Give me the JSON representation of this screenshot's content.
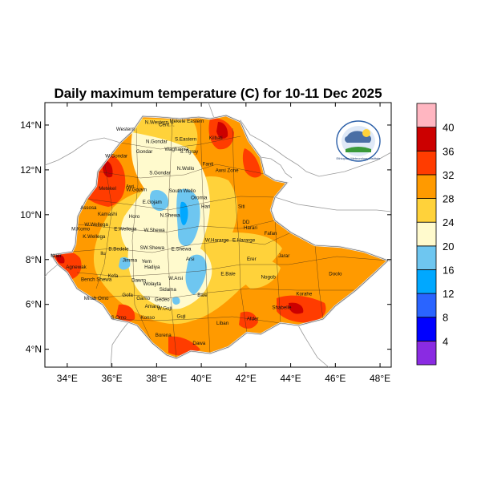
{
  "title": "Daily maximum temperature (C) for 10-11 Dec 2025",
  "x_ticks": [
    "34°E",
    "36°E",
    "38°E",
    "40°E",
    "42°E",
    "44°E",
    "46°E",
    "48°E"
  ],
  "y_ticks": [
    "14°N",
    "12°N",
    "10°N",
    "8°N",
    "6°N",
    "4°N"
  ],
  "colorbar": {
    "colors": [
      "#8a2be2",
      "#0000ff",
      "#2a64ff",
      "#00a8ff",
      "#6ec6f0",
      "#fffacd",
      "#ffd23a",
      "#ff9a00",
      "#ff3c00",
      "#cc0000",
      "#ffb6c1"
    ],
    "labels": [
      "4",
      "8",
      "12",
      "16",
      "20",
      "24",
      "28",
      "32",
      "36",
      "40"
    ]
  },
  "logo_text": "Ethiopian Meteorology Institute",
  "regions": [
    {
      "name": "N.Western",
      "x": 38.0,
      "y": 14.05
    },
    {
      "name": "Cent.T.",
      "x": 38.45,
      "y": 13.95
    },
    {
      "name": "Mekele Eastern",
      "x": 39.35,
      "y": 14.1
    },
    {
      "name": "Western",
      "x": 36.6,
      "y": 13.75
    },
    {
      "name": "N.Gondar",
      "x": 38.0,
      "y": 13.2
    },
    {
      "name": "S.Eastern",
      "x": 39.3,
      "y": 13.3
    },
    {
      "name": "Kilbati",
      "x": 40.65,
      "y": 13.35
    },
    {
      "name": "Gondar",
      "x": 37.45,
      "y": 12.75
    },
    {
      "name": "Waghamra",
      "x": 38.9,
      "y": 12.85
    },
    {
      "name": "S.Tigray",
      "x": 39.45,
      "y": 12.75
    },
    {
      "name": "W.Gondar",
      "x": 36.2,
      "y": 12.55
    },
    {
      "name": "Fanti",
      "x": 40.3,
      "y": 12.2
    },
    {
      "name": "S.Gondar",
      "x": 38.15,
      "y": 11.8
    },
    {
      "name": "N.Wollo",
      "x": 39.3,
      "y": 12.0
    },
    {
      "name": "Awsi Zone",
      "x": 41.15,
      "y": 11.9
    },
    {
      "name": "Awi",
      "x": 36.8,
      "y": 11.2
    },
    {
      "name": "W.Gojam",
      "x": 37.1,
      "y": 11.05
    },
    {
      "name": "Metekel",
      "x": 35.8,
      "y": 11.1
    },
    {
      "name": "South Wello",
      "x": 39.15,
      "y": 11.0
    },
    {
      "name": "E.Gojam",
      "x": 37.8,
      "y": 10.5
    },
    {
      "name": "Oromia",
      "x": 39.9,
      "y": 10.7
    },
    {
      "name": "Hari",
      "x": 40.2,
      "y": 10.3
    },
    {
      "name": "Assosa",
      "x": 34.95,
      "y": 10.25
    },
    {
      "name": "Kamashi",
      "x": 35.8,
      "y": 9.95
    },
    {
      "name": "Horo",
      "x": 37.0,
      "y": 9.85
    },
    {
      "name": "N.Shewa",
      "x": 38.6,
      "y": 9.9
    },
    {
      "name": "Siti",
      "x": 41.8,
      "y": 10.3
    },
    {
      "name": "W.Wellega",
      "x": 35.3,
      "y": 9.5
    },
    {
      "name": "E.Wellega",
      "x": 36.6,
      "y": 9.3
    },
    {
      "name": "W.Shewa",
      "x": 37.9,
      "y": 9.25
    },
    {
      "name": "DD",
      "x": 42.0,
      "y": 9.6
    },
    {
      "name": "Harari",
      "x": 42.2,
      "y": 9.35
    },
    {
      "name": "Fafan",
      "x": 43.1,
      "y": 9.1
    },
    {
      "name": "M.Komo",
      "x": 34.6,
      "y": 9.3
    },
    {
      "name": "K.Wellega",
      "x": 35.2,
      "y": 8.95
    },
    {
      "name": "W.Hararge",
      "x": 40.7,
      "y": 8.8
    },
    {
      "name": "E.Hararge",
      "x": 41.9,
      "y": 8.8
    },
    {
      "name": "B.Bedele",
      "x": 36.3,
      "y": 8.4
    },
    {
      "name": "SW.Shewa",
      "x": 37.8,
      "y": 8.45
    },
    {
      "name": "E.Shewa",
      "x": 39.1,
      "y": 8.4
    },
    {
      "name": "Nuer",
      "x": 33.5,
      "y": 8.1
    },
    {
      "name": "Ilu",
      "x": 35.6,
      "y": 8.2
    },
    {
      "name": "Jimma",
      "x": 36.8,
      "y": 7.9
    },
    {
      "name": "Yem",
      "x": 37.55,
      "y": 7.85
    },
    {
      "name": "Arsi",
      "x": 39.5,
      "y": 7.95
    },
    {
      "name": "Erer",
      "x": 42.25,
      "y": 7.95
    },
    {
      "name": "Jarar",
      "x": 43.7,
      "y": 8.1
    },
    {
      "name": "Agnewak",
      "x": 34.4,
      "y": 7.6
    },
    {
      "name": "Hadiya",
      "x": 37.8,
      "y": 7.6
    },
    {
      "name": "Bench Shewa",
      "x": 35.3,
      "y": 7.05
    },
    {
      "name": "Kefa",
      "x": 36.05,
      "y": 7.2
    },
    {
      "name": "Dawro",
      "x": 37.2,
      "y": 7.0
    },
    {
      "name": "Wolayta",
      "x": 37.8,
      "y": 6.85
    },
    {
      "name": "W.Arsi",
      "x": 38.85,
      "y": 7.1
    },
    {
      "name": "E.Bale",
      "x": 41.2,
      "y": 7.3
    },
    {
      "name": "Nogob",
      "x": 43.0,
      "y": 7.15
    },
    {
      "name": "Doolo",
      "x": 46.0,
      "y": 7.3
    },
    {
      "name": "Sidama",
      "x": 38.5,
      "y": 6.6
    },
    {
      "name": "Bale",
      "x": 40.05,
      "y": 6.35
    },
    {
      "name": "Mirab Omo",
      "x": 35.3,
      "y": 6.2
    },
    {
      "name": "Gofa",
      "x": 36.7,
      "y": 6.35
    },
    {
      "name": "Gamo",
      "x": 37.4,
      "y": 6.2
    },
    {
      "name": "Gedeo",
      "x": 38.25,
      "y": 6.15
    },
    {
      "name": "Korahe",
      "x": 44.6,
      "y": 6.4
    },
    {
      "name": "Amaro",
      "x": 37.8,
      "y": 5.85
    },
    {
      "name": "W.Guji",
      "x": 38.35,
      "y": 5.75
    },
    {
      "name": "Shabelle",
      "x": 43.6,
      "y": 5.8
    },
    {
      "name": "Guji",
      "x": 39.1,
      "y": 5.4
    },
    {
      "name": "S.Omo",
      "x": 36.3,
      "y": 5.35
    },
    {
      "name": "Konso",
      "x": 37.6,
      "y": 5.35
    },
    {
      "name": "Afder",
      "x": 42.3,
      "y": 5.3
    },
    {
      "name": "Liban",
      "x": 40.95,
      "y": 5.1
    },
    {
      "name": "Borena",
      "x": 38.3,
      "y": 4.55
    },
    {
      "name": "Dawa",
      "x": 39.9,
      "y": 4.2
    }
  ]
}
